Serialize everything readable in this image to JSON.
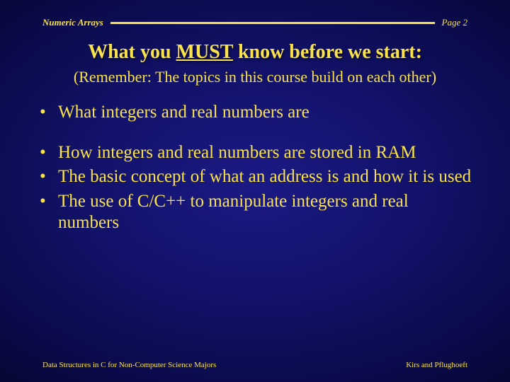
{
  "colors": {
    "text_yellow": "#f9e24a",
    "rule": "#f9e24a"
  },
  "header": {
    "left": "Numeric Arrays",
    "right": "Page 2"
  },
  "title": {
    "pre": "What you ",
    "underlined": "MUST",
    "post": " know before we start:"
  },
  "subtitle": "(Remember: The topics in this course build on each other)",
  "bullets": [
    "What integers and real numbers are",
    "How integers and real numbers are stored in RAM",
    "The basic concept of what an address is and how it is used",
    "The use of C/C++ to manipulate integers and real numbers"
  ],
  "footer": {
    "left": "Data Structures in C for Non-Computer Science Majors",
    "right": "Kirs and Pflughoeft"
  }
}
